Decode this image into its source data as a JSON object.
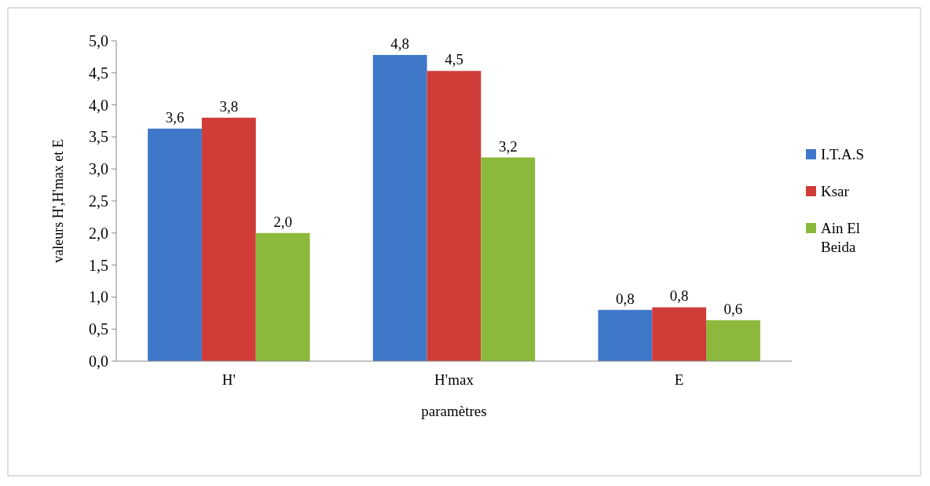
{
  "chart_data": {
    "type": "bar",
    "xlabel": "paramètres",
    "ylabel": "valeurs H',H'max et E",
    "categories": [
      "H'",
      "H'max",
      "E"
    ],
    "series": [
      {
        "name": "I.T.A.S",
        "color": "#3f78c8",
        "values": [
          3.63,
          4.78,
          0.8
        ],
        "value_labels": [
          "3,6",
          "4,8",
          "0,8"
        ]
      },
      {
        "name": "Ksar",
        "color": "#d03c38",
        "values": [
          3.8,
          4.53,
          0.84
        ],
        "value_labels": [
          "3,8",
          "4,5",
          "0,8"
        ]
      },
      {
        "name": "Ain El Beida",
        "color": "#8cb83c",
        "values": [
          2.0,
          3.18,
          0.64
        ],
        "value_labels": [
          "2,0",
          "3,2",
          "0,6"
        ]
      }
    ],
    "ylim": [
      0,
      5
    ],
    "yticks": [
      {
        "value": 0,
        "label": "0,0"
      },
      {
        "value": 0.5,
        "label": "0,5"
      },
      {
        "value": 1,
        "label": "1,0"
      },
      {
        "value": 1.5,
        "label": "1,5"
      },
      {
        "value": 2,
        "label": "2,0"
      },
      {
        "value": 2.5,
        "label": "2,5"
      },
      {
        "value": 3,
        "label": "3,0"
      },
      {
        "value": 3.5,
        "label": "3,5"
      },
      {
        "value": 4,
        "label": "4,0"
      },
      {
        "value": 4.5,
        "label": "4,5"
      },
      {
        "value": 5,
        "label": "5,0"
      }
    ],
    "grid": false,
    "legend": "right"
  }
}
